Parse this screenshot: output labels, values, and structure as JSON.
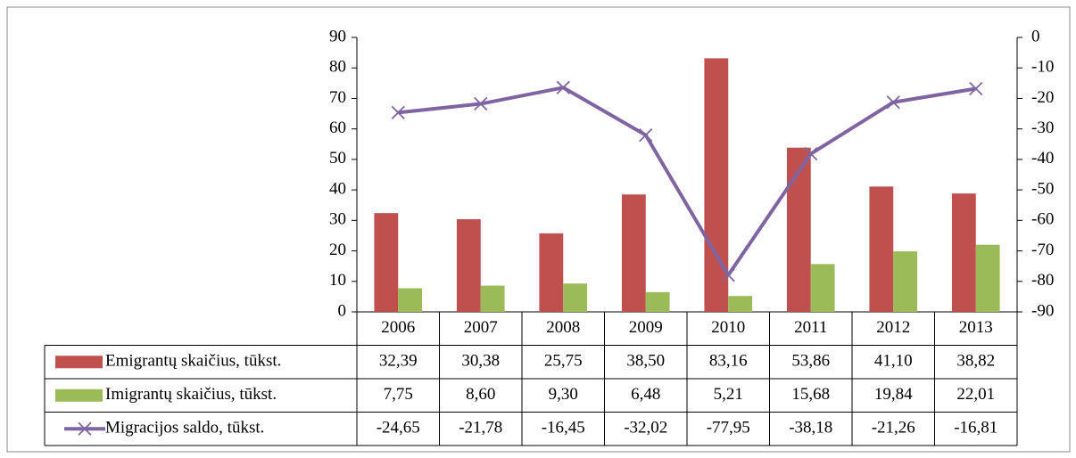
{
  "chart_data": {
    "type": "combo",
    "categories": [
      "2006",
      "2007",
      "2008",
      "2009",
      "2010",
      "2011",
      "2012",
      "2013"
    ],
    "series": [
      {
        "name": "Emigrantų skaičius, tūkst.",
        "type": "bar",
        "color": "#c0504d",
        "values": [
          32.39,
          30.38,
          25.75,
          38.5,
          83.16,
          53.86,
          41.1,
          38.82
        ],
        "value_labels": [
          "32,39",
          "30,38",
          "25,75",
          "38,50",
          "83,16",
          "53,86",
          "41,10",
          "38,82"
        ]
      },
      {
        "name": "Imigrantų skaičius, tūkst.",
        "type": "bar",
        "color": "#9bbb59",
        "values": [
          7.75,
          8.6,
          9.3,
          6.48,
          5.21,
          15.68,
          19.84,
          22.01
        ],
        "value_labels": [
          "7,75",
          "8,60",
          "9,30",
          "6,48",
          "5,21",
          "15,68",
          "19,84",
          "22,01"
        ]
      },
      {
        "name": "Migracijos saldo, tūkst.",
        "type": "line",
        "axis": "y2",
        "color": "#8064a2",
        "values": [
          -24.65,
          -21.78,
          -16.45,
          -32.02,
          -77.95,
          -38.18,
          -21.26,
          -16.81
        ],
        "value_labels": [
          "-24,65",
          "-21,78",
          "-16,45",
          "-32,02",
          "-77,95",
          "-38,18",
          "-21,26",
          "-16,81"
        ]
      }
    ],
    "ylim": [
      0,
      90
    ],
    "yticks": [
      0,
      10,
      20,
      30,
      40,
      50,
      60,
      70,
      80,
      90
    ],
    "y2lim": [
      -90,
      0
    ],
    "y2ticks": [
      0,
      -10,
      -20,
      -30,
      -40,
      -50,
      -60,
      -70,
      -80,
      -90
    ],
    "data_table": true
  }
}
